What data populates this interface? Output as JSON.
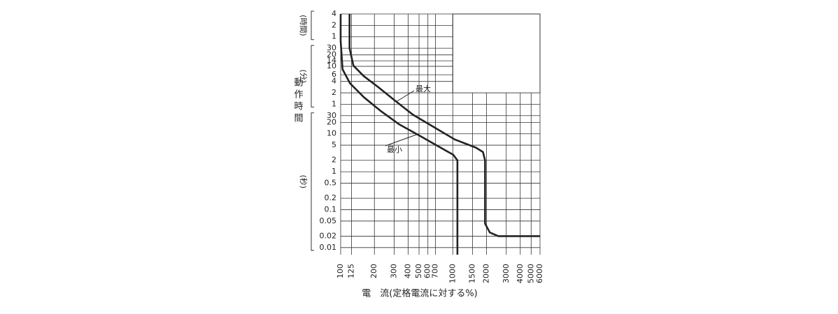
{
  "chart_data": {
    "type": "line",
    "x_label": "電　流(定格電流に対する%)",
    "y_label": "動作時間",
    "y_sections": [
      "(時間)",
      "(分)",
      "(秒)"
    ],
    "log_x": true,
    "log_y": true,
    "grid": true,
    "xlim": [
      100,
      6000
    ],
    "xticks": [
      100,
      125,
      200,
      300,
      400,
      500,
      600,
      700,
      1000,
      1500,
      2000,
      3000,
      4000,
      5000,
      6000
    ],
    "ylim": [
      0.0065,
      14400
    ],
    "yticks": [
      0.01,
      0.02,
      0.05,
      0.1,
      0.2,
      0.5,
      1,
      2,
      5,
      10,
      20,
      30,
      {
        "value": 60,
        "label": "1"
      },
      {
        "value": 120,
        "label": "2"
      },
      {
        "value": 240,
        "label": "4"
      },
      {
        "value": 360,
        "label": "6"
      },
      {
        "value": 600,
        "label": "10"
      },
      {
        "value": 840,
        "label": "14"
      },
      {
        "value": 1200,
        "label": "20"
      },
      {
        "value": 1800,
        "label": "30"
      },
      {
        "value": 3600,
        "label": "1"
      },
      {
        "value": 7200,
        "label": "2"
      },
      {
        "value": 14400,
        "label": "4"
      }
    ],
    "series": [
      {
        "name": "最大",
        "color": "#222222",
        "x": [
          120,
          120,
          130,
          161,
          214,
          307,
          440,
          678,
          1040,
          1610,
          1860,
          1940,
          1940,
          2140,
          2550,
          6000
        ],
        "values": [
          14400,
          1800,
          625,
          330,
          174,
          74,
          32,
          15,
          7.1,
          4.3,
          3.3,
          2.0,
          0.043,
          0.025,
          0.02,
          0.02
        ]
      },
      {
        "name": "最小",
        "color": "#222222",
        "x": [
          100,
          100,
          104,
          121,
          161,
          230,
          330,
          510,
          780,
          1010,
          1100,
          1100
        ],
        "values": [
          14400,
          2800,
          500,
          215,
          92,
          39,
          18,
          8.8,
          4.3,
          2.8,
          2.0,
          0.0065
        ]
      }
    ]
  }
}
